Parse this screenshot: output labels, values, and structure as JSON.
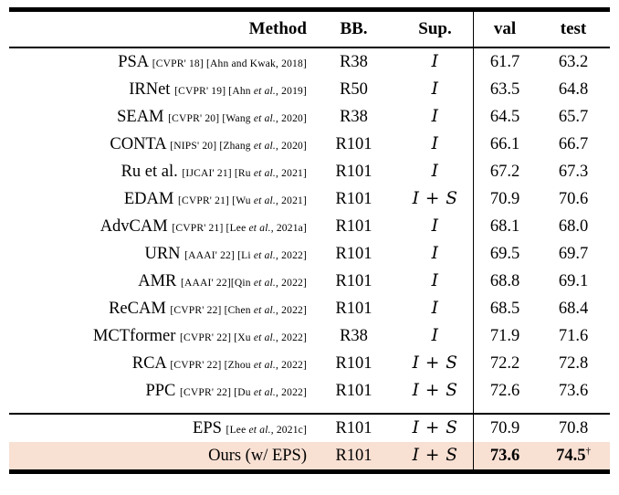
{
  "table": {
    "columns": [
      "Method",
      "BB.",
      "Sup.",
      "val",
      "test"
    ],
    "highlight_color": "#f8e0d3",
    "rows": [
      {
        "method": "PSA",
        "cite": "[CVPR' 18] [Ahn and Kwak, 2018]",
        "bb": "R38",
        "sup": "I",
        "val": "61.7",
        "test": "63.2"
      },
      {
        "method": "IRNet",
        "cite": "[CVPR' 19] [Ahn *et al.*, 2019]",
        "bb": "R50",
        "sup": "I",
        "val": "63.5",
        "test": "64.8"
      },
      {
        "method": "SEAM",
        "cite": "[CVPR' 20] [Wang *et al.*, 2020]",
        "bb": "R38",
        "sup": "I",
        "val": "64.5",
        "test": "65.7"
      },
      {
        "method": "CONTA",
        "cite": "[NIPS' 20] [Zhang *et al.*, 2020]",
        "bb": "R101",
        "sup": "I",
        "val": "66.1",
        "test": "66.7"
      },
      {
        "method": "Ru et al.",
        "cite": "[IJCAI' 21] [Ru *et al.*, 2021]",
        "bb": "R101",
        "sup": "I",
        "val": "67.2",
        "test": "67.3"
      },
      {
        "method": "EDAM",
        "cite": "[CVPR' 21] [Wu *et al.*, 2021]",
        "bb": "R101",
        "sup": "I + S",
        "val": "70.9",
        "test": "70.6"
      },
      {
        "method": "AdvCAM",
        "cite": "[CVPR' 21] [Lee *et al.*, 2021a]",
        "bb": "R101",
        "sup": "I",
        "val": "68.1",
        "test": "68.0"
      },
      {
        "method": "URN",
        "cite": "[AAAI' 22] [Li *et al.*, 2022]",
        "bb": "R101",
        "sup": "I",
        "val": "69.5",
        "test": "69.7"
      },
      {
        "method": "AMR",
        "cite": "[AAAI' 22][Qin *et al.*, 2022]",
        "bb": "R101",
        "sup": "I",
        "val": "68.8",
        "test": "69.1"
      },
      {
        "method": "ReCAM",
        "cite": "[CVPR' 22] [Chen *et al.*, 2022]",
        "bb": "R101",
        "sup": "I",
        "val": "68.5",
        "test": "68.4"
      },
      {
        "method": "MCTformer",
        "cite": "[CVPR' 22] [Xu *et al.*, 2022]",
        "bb": "R38",
        "sup": "I",
        "val": "71.9",
        "test": "71.6"
      },
      {
        "method": "RCA",
        "cite": "[CVPR' 22] [Zhou *et al.*, 2022]",
        "bb": "R101",
        "sup": "I + S",
        "val": "72.2",
        "test": "72.8"
      },
      {
        "method": "PPC",
        "cite": "[CVPR' 22] [Du *et al.*, 2022]",
        "bb": "R101",
        "sup": "I + S",
        "val": "72.6",
        "test": "73.6"
      },
      {
        "method": "EPS",
        "cite": "[Lee *et al.*, 2021c]",
        "bb": "R101",
        "sup": "I + S",
        "val": "70.9",
        "test": "70.8",
        "rule_above": true
      },
      {
        "method": "Ours (w/ EPS)",
        "cite": "",
        "bb": "R101",
        "sup": "I + S",
        "val": "73.6",
        "test": "74.5",
        "test_sup": "†",
        "highlight": true,
        "bold_values": true
      }
    ]
  }
}
